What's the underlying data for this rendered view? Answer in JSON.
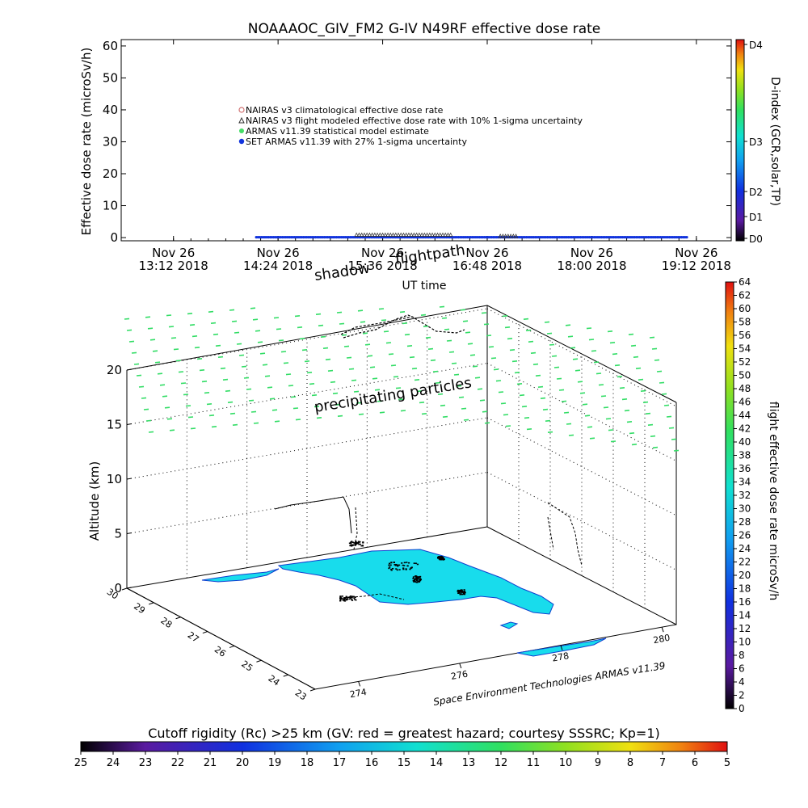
{
  "chart_data": [
    {
      "type": "line",
      "title": "NOAAAOC_GIV_FM2 G-IV    N49RF  effective dose rate",
      "ylabel": "Effective dose rate (microSv/h)",
      "xlabel": "UT time",
      "ylim": [
        0,
        60
      ],
      "yticks": [
        "0",
        "10",
        "20",
        "30",
        "40",
        "50",
        "60"
      ],
      "xticks": [
        {
          "day": "Nov 26",
          "time": "13:12 2018"
        },
        {
          "day": "Nov 26",
          "time": "14:24 2018"
        },
        {
          "day": "Nov 26",
          "time": "15:36 2018"
        },
        {
          "day": "Nov 26",
          "time": "16:48 2018"
        },
        {
          "day": "Nov 26",
          "time": "18:00 2018"
        },
        {
          "day": "Nov 26",
          "time": "19:12 2018"
        }
      ],
      "legend": {
        "placement": "upper-left",
        "entries": [
          {
            "label": "NAIRAS v3 climatological effective dose rate",
            "color": "#d07070",
            "marker": "circle"
          },
          {
            "label": "NAIRAS v3 flight modeled effective dose rate with 10% 1-sigma uncertainty",
            "color": "#333333",
            "marker": "triangle"
          },
          {
            "label": "ARMAS v11.39 statistical model estimate",
            "color": "#44dd66",
            "marker": "star"
          },
          {
            "label": "SET ARMAS v11.39 with 27% 1-sigma uncertainty",
            "color": "#1133dd",
            "marker": "dot"
          }
        ]
      },
      "series": [
        {
          "name": "SET ARMAS v11.39 with 27% 1-sigma uncertainty",
          "x_hours": [
            14.15,
            19.1
          ],
          "values": [
            0.1,
            0.1
          ]
        },
        {
          "name": "NAIRAS v3 flight modeled effective dose rate with 10% 1-sigma uncertainty",
          "segments": [
            {
              "x_hours": [
                15.3,
                16.4
              ],
              "value": 0.9
            },
            {
              "x_hours": [
                16.95,
                17.15
              ],
              "value": 0.5
            }
          ]
        }
      ],
      "right_axis": {
        "label": "D-index (GCR,solar,TP)",
        "ticks": [
          "D0",
          "D1",
          "D2",
          "D3",
          "D4"
        ]
      }
    },
    {
      "type": "scatter",
      "annotations": [
        "flightpath",
        "shadow",
        "precipitating particles"
      ],
      "zlabel": "Altitude (km)",
      "zlim": [
        0,
        22
      ],
      "zticks": [
        "0",
        "5",
        "10",
        "15",
        "20"
      ],
      "lat_ticks": [
        "23",
        "24",
        "25",
        "26",
        "27",
        "28",
        "29",
        "30"
      ],
      "lon_ticks": [
        "274",
        "276",
        "278",
        "280"
      ],
      "colorbar": {
        "label": "flight effective dose rate microSv/h",
        "ticks": [
          "0",
          "2",
          "4",
          "6",
          "8",
          "10",
          "12",
          "14",
          "16",
          "18",
          "20",
          "22",
          "24",
          "26",
          "28",
          "30",
          "32",
          "34",
          "36",
          "38",
          "40",
          "42",
          "44",
          "46",
          "48",
          "50",
          "52",
          "54",
          "56",
          "58",
          "60",
          "62",
          "64"
        ]
      },
      "credit": "Space Environment Technologies ARMAS v11.39"
    }
  ],
  "bottom_colorbar": {
    "title": "Cutoff rigidity (Rc) >25 km (GV: red = greatest hazard; courtesy SSSRC; Kp=1)",
    "ticks": [
      "25",
      "24",
      "23",
      "22",
      "21",
      "20",
      "19",
      "18",
      "17",
      "16",
      "15",
      "14",
      "13",
      "12",
      "11",
      "10",
      "9",
      "8",
      "7",
      "6",
      "5"
    ]
  }
}
